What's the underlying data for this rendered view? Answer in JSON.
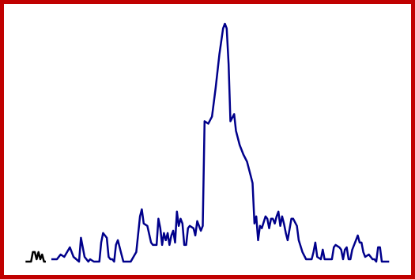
{
  "colors": {
    "frame": "#c00000",
    "background": "#ffffff",
    "line": "#00008b",
    "inset": "#000000"
  },
  "chart_data": {
    "type": "line",
    "grid": false,
    "legend": "none",
    "xlim": [
      0,
      185
    ],
    "ylim": [
      0,
      100
    ],
    "series": [
      {
        "values": [
          [
            0,
            3
          ],
          [
            3,
            3
          ],
          [
            5,
            5
          ],
          [
            7,
            4
          ],
          [
            10,
            8
          ],
          [
            12,
            4
          ],
          [
            15,
            2
          ],
          [
            16,
            12
          ],
          [
            18,
            4
          ],
          [
            20,
            2
          ],
          [
            21,
            3
          ],
          [
            23,
            2
          ],
          [
            25,
            2
          ],
          [
            26,
            2
          ],
          [
            27,
            10
          ],
          [
            28,
            14
          ],
          [
            30,
            12
          ],
          [
            31,
            4
          ],
          [
            32,
            3
          ],
          [
            33,
            3
          ],
          [
            34,
            2
          ],
          [
            35,
            9
          ],
          [
            36,
            11
          ],
          [
            38,
            5
          ],
          [
            39,
            2
          ],
          [
            42,
            2
          ],
          [
            43,
            2
          ],
          [
            46,
            6
          ],
          [
            48,
            21
          ],
          [
            49,
            24
          ],
          [
            50,
            18
          ],
          [
            52,
            17
          ],
          [
            54,
            10
          ],
          [
            55,
            9
          ],
          [
            57,
            9
          ],
          [
            58,
            20
          ],
          [
            59,
            16
          ],
          [
            60,
            9
          ],
          [
            61,
            14
          ],
          [
            62,
            11
          ],
          [
            63,
            14
          ],
          [
            64,
            9
          ],
          [
            65,
            13
          ],
          [
            66,
            15
          ],
          [
            67,
            10
          ],
          [
            68,
            23
          ],
          [
            69,
            17
          ],
          [
            70,
            20
          ],
          [
            71,
            18
          ],
          [
            72,
            9
          ],
          [
            73,
            9
          ],
          [
            74,
            16
          ],
          [
            75,
            17
          ],
          [
            77,
            16
          ],
          [
            78,
            13
          ],
          [
            79,
            19
          ],
          [
            80,
            17
          ],
          [
            81,
            15
          ],
          [
            82,
            17
          ],
          [
            83,
            61
          ],
          [
            85,
            60
          ],
          [
            87,
            63
          ],
          [
            89,
            75
          ],
          [
            91,
            89
          ],
          [
            93,
            100
          ],
          [
            94,
            102
          ],
          [
            95,
            100
          ],
          [
            96,
            85
          ],
          [
            97,
            61
          ],
          [
            99,
            64
          ],
          [
            100,
            57
          ],
          [
            102,
            51
          ],
          [
            104,
            47
          ],
          [
            106,
            44
          ],
          [
            108,
            38
          ],
          [
            109,
            35
          ],
          [
            110,
            18
          ],
          [
            111,
            21
          ],
          [
            112,
            11
          ],
          [
            113,
            17
          ],
          [
            114,
            16
          ],
          [
            116,
            21
          ],
          [
            117,
            20
          ],
          [
            118,
            16
          ],
          [
            119,
            20
          ],
          [
            120,
            20
          ],
          [
            121,
            18
          ],
          [
            122,
            21
          ],
          [
            123,
            23
          ],
          [
            124,
            17
          ],
          [
            125,
            21
          ],
          [
            126,
            18
          ],
          [
            127,
            14
          ],
          [
            128,
            11
          ],
          [
            130,
            20
          ],
          [
            131,
            20
          ],
          [
            133,
            17
          ],
          [
            134,
            11
          ],
          [
            136,
            6
          ],
          [
            138,
            3
          ],
          [
            141,
            3
          ],
          [
            142,
            6
          ],
          [
            143,
            10
          ],
          [
            144,
            4
          ],
          [
            146,
            3
          ],
          [
            147,
            7
          ],
          [
            148,
            3
          ],
          [
            150,
            3
          ],
          [
            152,
            3
          ],
          [
            153,
            8
          ],
          [
            154,
            9
          ],
          [
            156,
            8
          ],
          [
            157,
            7
          ],
          [
            158,
            3
          ],
          [
            159,
            7
          ],
          [
            160,
            8
          ],
          [
            161,
            3
          ],
          [
            162,
            3
          ],
          [
            163,
            7
          ],
          [
            165,
            11
          ],
          [
            166,
            13
          ],
          [
            167,
            10
          ],
          [
            168,
            10
          ],
          [
            169,
            6
          ],
          [
            170,
            4
          ],
          [
            172,
            5
          ],
          [
            174,
            3
          ],
          [
            175,
            3
          ],
          [
            176,
            2
          ],
          [
            177,
            8
          ],
          [
            178,
            8
          ],
          [
            179,
            2
          ],
          [
            181,
            2
          ],
          [
            183,
            2
          ]
        ]
      },
      {
        "values": [
          [
            -14,
            2
          ],
          [
            -11,
            2
          ],
          [
            -10,
            6
          ],
          [
            -9,
            6
          ],
          [
            -8,
            3
          ],
          [
            -7,
            6
          ],
          [
            -6,
            3
          ],
          [
            -5,
            5
          ],
          [
            -4,
            2
          ],
          [
            -3,
            2
          ]
        ]
      }
    ]
  }
}
